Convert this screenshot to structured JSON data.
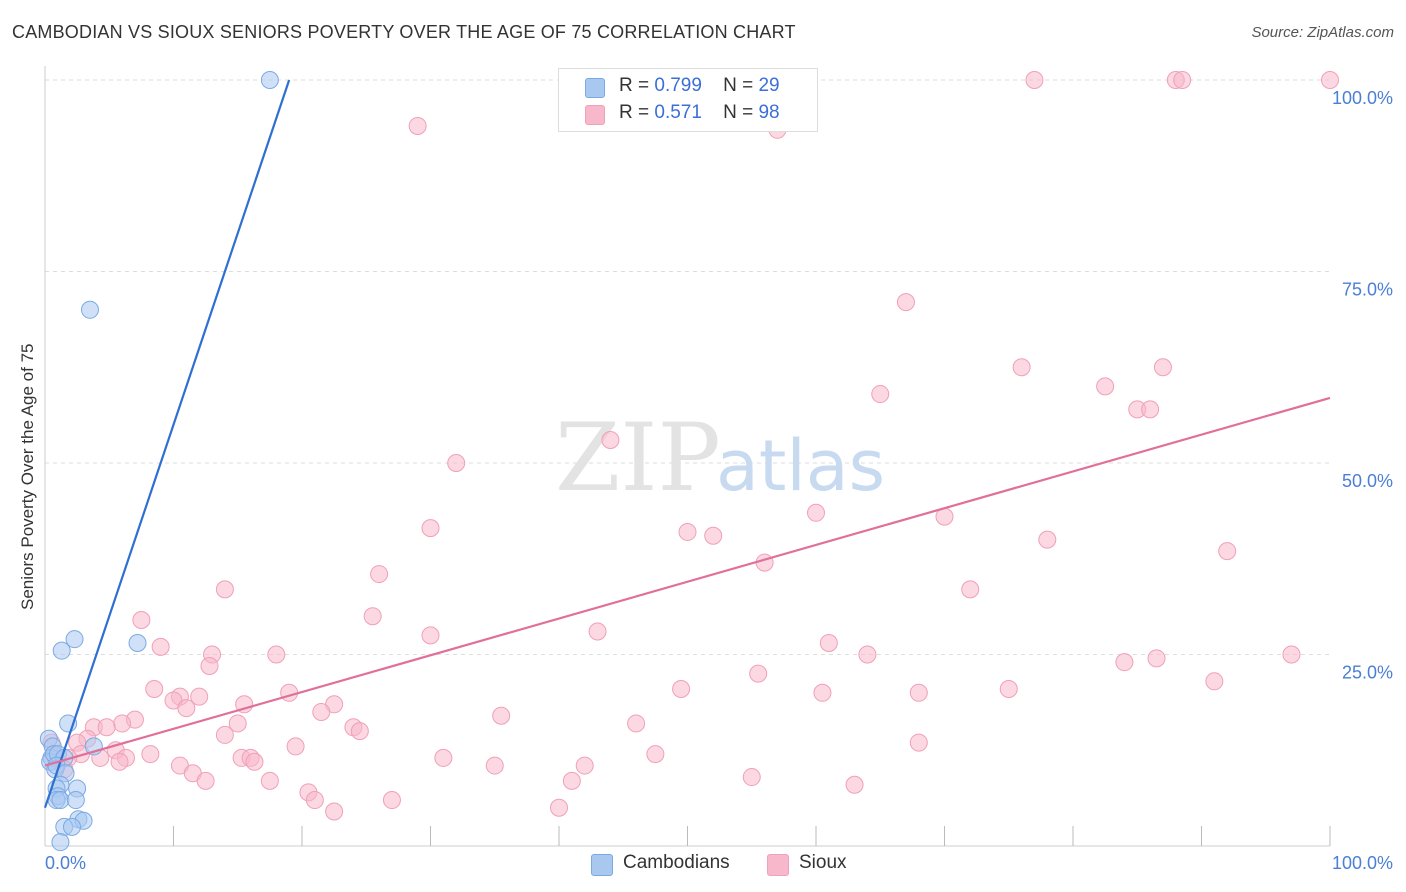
{
  "title": "CAMBODIAN VS SIOUX SENIORS POVERTY OVER THE AGE OF 75 CORRELATION CHART",
  "source": "Source: ZipAtlas.com",
  "watermark": {
    "zip": "ZIP",
    "atlas": "atlas"
  },
  "legend_top": [
    {
      "r_label": "R =",
      "r_value": "0.799",
      "n_label": "N =",
      "n_value": "29",
      "color": "#a9c8f0"
    },
    {
      "r_label": "R =",
      "r_value": "0.571",
      "n_label": "N =",
      "n_value": "98",
      "color": "#f7b8cb"
    }
  ],
  "legend_bottom": [
    {
      "label": "Cambodians",
      "color": "#a9c8f0"
    },
    {
      "label": "Sioux",
      "color": "#f7b8cb"
    }
  ],
  "chart_data": {
    "type": "scatter",
    "title": "CAMBODIAN VS SIOUX SENIORS POVERTY OVER THE AGE OF 75 CORRELATION CHART",
    "xlabel": "",
    "ylabel": "Seniors Poverty Over the Age of 75",
    "xlim": [
      0,
      100
    ],
    "ylim": [
      0,
      100
    ],
    "x_tick_labels": [
      "0.0%",
      "100.0%"
    ],
    "y_tick_labels": [
      "25.0%",
      "50.0%",
      "75.0%",
      "100.0%"
    ],
    "y_ticks": [
      25,
      50,
      75,
      100
    ],
    "grid": true,
    "series": [
      {
        "name": "Cambodians",
        "color": "#7aaae6",
        "fill": "#a9c8f0",
        "line_color": "#2e6fd1",
        "trend": {
          "x": [
            0,
            19
          ],
          "y": [
            5.0,
            100
          ]
        },
        "points": [
          [
            17.5,
            100
          ],
          [
            3.5,
            70
          ],
          [
            2.3,
            27
          ],
          [
            7.2,
            26.5
          ],
          [
            1.3,
            25.5
          ],
          [
            1.8,
            16
          ],
          [
            3.8,
            13
          ],
          [
            0.3,
            14
          ],
          [
            0.6,
            13
          ],
          [
            0.5,
            11.5
          ],
          [
            0.4,
            11
          ],
          [
            0.7,
            12
          ],
          [
            1.0,
            12
          ],
          [
            1.5,
            11.5
          ],
          [
            0.8,
            10
          ],
          [
            0.9,
            10.5
          ],
          [
            1.6,
            9.5
          ],
          [
            1.2,
            8
          ],
          [
            2.5,
            7.5
          ],
          [
            0.9,
            7.5
          ],
          [
            1.0,
            6.5
          ],
          [
            0.9,
            6
          ],
          [
            1.2,
            6
          ],
          [
            2.4,
            6
          ],
          [
            2.6,
            3.5
          ],
          [
            3.0,
            3.3
          ],
          [
            1.5,
            2.5
          ],
          [
            2.1,
            2.5
          ],
          [
            1.2,
            0.5
          ]
        ]
      },
      {
        "name": "Sioux",
        "color": "#f0a0b8",
        "fill": "#f7b8cb",
        "line_color": "#e0709a",
        "trend": {
          "x": [
            0,
            100
          ],
          "y": [
            10.5,
            58.5
          ]
        },
        "points": [
          [
            29,
            94
          ],
          [
            57,
            93.5
          ],
          [
            77,
            100
          ],
          [
            88,
            100
          ],
          [
            88.5,
            100
          ],
          [
            100,
            100
          ],
          [
            46,
            100
          ],
          [
            67,
            71
          ],
          [
            76,
            62.5
          ],
          [
            87,
            62.5
          ],
          [
            65,
            59
          ],
          [
            82.5,
            60
          ],
          [
            85,
            57
          ],
          [
            86,
            57
          ],
          [
            44,
            53
          ],
          [
            32,
            50
          ],
          [
            30,
            41.5
          ],
          [
            50,
            41
          ],
          [
            52,
            40.5
          ],
          [
            60,
            43.5
          ],
          [
            70,
            43
          ],
          [
            78,
            40
          ],
          [
            92,
            38.5
          ],
          [
            56,
            37
          ],
          [
            26,
            35.5
          ],
          [
            14,
            33.5
          ],
          [
            72,
            33.5
          ],
          [
            25.5,
            30
          ],
          [
            7.5,
            29.5
          ],
          [
            30,
            27.5
          ],
          [
            43,
            28
          ],
          [
            61,
            26.5
          ],
          [
            9,
            26
          ],
          [
            13,
            25
          ],
          [
            18,
            25
          ],
          [
            64,
            25
          ],
          [
            84,
            24
          ],
          [
            86.5,
            24.5
          ],
          [
            97,
            25
          ],
          [
            12.8,
            23.5
          ],
          [
            55.5,
            22.5
          ],
          [
            91,
            21.5
          ],
          [
            8.5,
            20.5
          ],
          [
            19,
            20
          ],
          [
            49.5,
            20.5
          ],
          [
            60.5,
            20
          ],
          [
            68,
            20
          ],
          [
            75,
            20.5
          ],
          [
            10.5,
            19.5
          ],
          [
            12,
            19.5
          ],
          [
            10,
            19
          ],
          [
            15.5,
            18.5
          ],
          [
            22.5,
            18.5
          ],
          [
            11,
            18
          ],
          [
            21.5,
            17.5
          ],
          [
            35.5,
            17
          ],
          [
            7,
            16.5
          ],
          [
            15,
            16
          ],
          [
            24,
            15.5
          ],
          [
            46,
            16
          ],
          [
            6,
            16
          ],
          [
            3.8,
            15.5
          ],
          [
            4.8,
            15.5
          ],
          [
            24.5,
            15
          ],
          [
            14,
            14.5
          ],
          [
            3.3,
            14
          ],
          [
            2.5,
            13.5
          ],
          [
            0.5,
            13.5
          ],
          [
            19.5,
            13
          ],
          [
            68,
            13.5
          ],
          [
            8.2,
            12
          ],
          [
            5.5,
            12.5
          ],
          [
            2.8,
            12
          ],
          [
            0.8,
            11.5
          ],
          [
            1.8,
            11.5
          ],
          [
            6.3,
            11.5
          ],
          [
            4.3,
            11.5
          ],
          [
            15.3,
            11.5
          ],
          [
            16,
            11.5
          ],
          [
            31,
            11.5
          ],
          [
            47.5,
            12
          ],
          [
            5.8,
            11
          ],
          [
            16.3,
            11
          ],
          [
            10.5,
            10.5
          ],
          [
            1.5,
            10
          ],
          [
            35,
            10.5
          ],
          [
            42,
            10.5
          ],
          [
            11.5,
            9.5
          ],
          [
            12.5,
            8.5
          ],
          [
            55,
            9
          ],
          [
            17.5,
            8.5
          ],
          [
            41,
            8.5
          ],
          [
            63,
            8
          ],
          [
            20.5,
            7
          ],
          [
            21,
            6
          ],
          [
            27,
            6
          ],
          [
            22.5,
            4.5
          ],
          [
            40,
            5
          ]
        ]
      }
    ]
  }
}
